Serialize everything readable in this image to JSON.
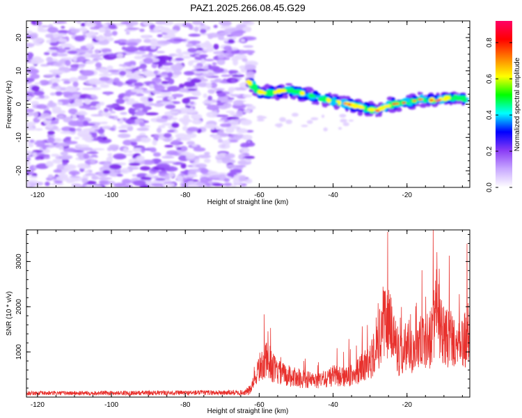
{
  "title": "PAZ1.2025.266.08.45.G29",
  "chart_data": [
    {
      "type": "heatmap",
      "xlabel": "Height of straight line (km)",
      "ylabel": "Frequency (Hz)",
      "xlim": [
        -123,
        -3
      ],
      "ylim": [
        -25,
        25
      ],
      "xticks": [
        -120,
        -100,
        -80,
        -60,
        -40,
        -20
      ],
      "yticks": [
        -20,
        -10,
        0,
        10,
        20
      ],
      "colorbar": {
        "label": "Normalized spectral amplitude",
        "range": [
          0,
          0.92
        ],
        "ticks": [
          0.0,
          0.2,
          0.4,
          0.6,
          0.8
        ],
        "colors": [
          "#ffffff",
          "#c8a8ff",
          "#8a3cf5",
          "#0000ff",
          "#00ffff",
          "#00ff00",
          "#ffff00",
          "#ff8000",
          "#ff0000",
          "#ff0066"
        ]
      },
      "ridge": {
        "height_km": [
          -63,
          -60,
          -56,
          -52,
          -48,
          -44,
          -40,
          -36,
          -32,
          -28,
          -24,
          -20,
          -16,
          -12,
          -8,
          -4
        ],
        "frequency_hz": [
          7,
          3.5,
          3.5,
          4.2,
          3,
          2,
          1,
          0,
          -1,
          -2,
          0,
          0.5,
          1.5,
          1,
          2,
          1.5
        ]
      },
      "noise_region_km": [
        -123,
        -62
      ]
    },
    {
      "type": "line",
      "xlabel": "Height of straight line (km)",
      "ylabel": "SNR (10 * v/v)",
      "xlim": [
        -123,
        -3
      ],
      "ylim": [
        0,
        3700
      ],
      "xticks": [
        -120,
        -100,
        -80,
        -60,
        -40,
        -20
      ],
      "yticks": [
        1000,
        2000,
        3000
      ],
      "color": "#e8312d",
      "envelope": {
        "x": [
          -123,
          -64,
          -62,
          -60,
          -58,
          -55,
          -52,
          -48,
          -44,
          -40,
          -36,
          -33,
          -30,
          -28,
          -26,
          -24,
          -22,
          -20,
          -18,
          -16,
          -14,
          -12,
          -10,
          -8,
          -6,
          -3
        ],
        "y": [
          100,
          130,
          300,
          900,
          1100,
          750,
          650,
          550,
          480,
          650,
          600,
          800,
          1100,
          1500,
          2500,
          2100,
          1200,
          1700,
          1400,
          1700,
          1700,
          2500,
          1800,
          1800,
          1500,
          2000
        ]
      }
    }
  ]
}
